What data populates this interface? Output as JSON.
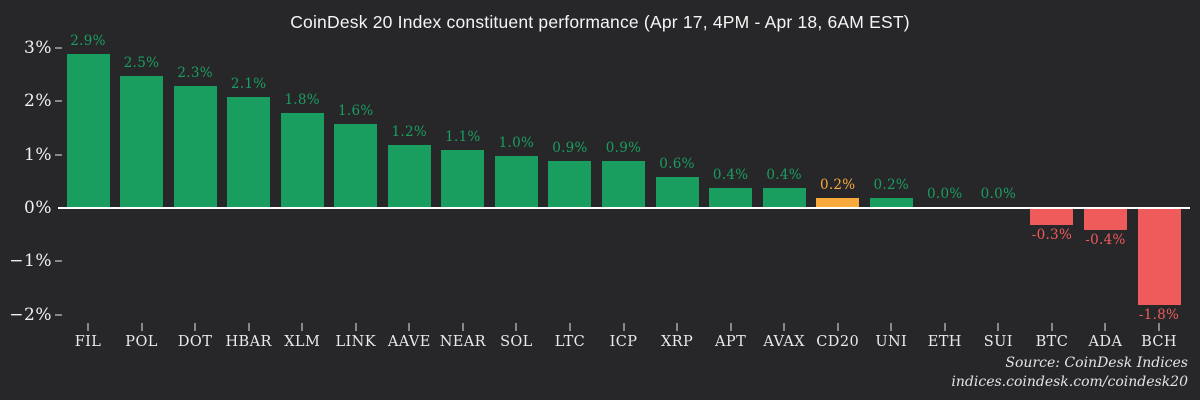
{
  "chart_data": {
    "type": "bar",
    "title": "CoinDesk 20 Index constituent performance (Apr 17, 4PM - Apr 18, 6AM EST)",
    "categories": [
      "FIL",
      "POL",
      "DOT",
      "HBAR",
      "XLM",
      "LINK",
      "AAVE",
      "NEAR",
      "SOL",
      "LTC",
      "ICP",
      "XRP",
      "APT",
      "AVAX",
      "CD20",
      "UNI",
      "ETH",
      "SUI",
      "BTC",
      "ADA",
      "BCH"
    ],
    "values": [
      2.9,
      2.5,
      2.3,
      2.1,
      1.8,
      1.6,
      1.2,
      1.1,
      1.0,
      0.9,
      0.9,
      0.6,
      0.4,
      0.4,
      0.2,
      0.2,
      0.0,
      0.0,
      -0.3,
      -0.4,
      -1.8
    ],
    "value_labels": [
      "2.9%",
      "2.5%",
      "2.3%",
      "2.1%",
      "1.8%",
      "1.6%",
      "1.2%",
      "1.1%",
      "1.0%",
      "0.9%",
      "0.9%",
      "0.6%",
      "0.4%",
      "0.4%",
      "0.2%",
      "0.2%",
      "0.0%",
      "0.0%",
      "-0.3%",
      "-0.4%",
      "-1.8%"
    ],
    "highlight_category": "CD20",
    "highlight_index": 14,
    "y_ticks": [
      {
        "value": 3,
        "label": "3%"
      },
      {
        "value": 2,
        "label": "2%"
      },
      {
        "value": 1,
        "label": "1%"
      },
      {
        "value": 0,
        "label": "0%"
      },
      {
        "value": -1,
        "label": "−1%"
      },
      {
        "value": -2,
        "label": "−2%"
      }
    ],
    "ylim": [
      -2.3,
      3.2
    ],
    "grid": false,
    "legend": "none",
    "colors": {
      "positive": "#1a9e5f",
      "negative": "#ef5b5b",
      "highlight": "#f9aa3d",
      "background": "#27272a",
      "axis_text": "#f0f0f0",
      "zero_line": "#ffffff"
    },
    "source_line1": "Source: CoinDesk Indices",
    "source_line2": "indices.coindesk.com/coindesk20"
  }
}
